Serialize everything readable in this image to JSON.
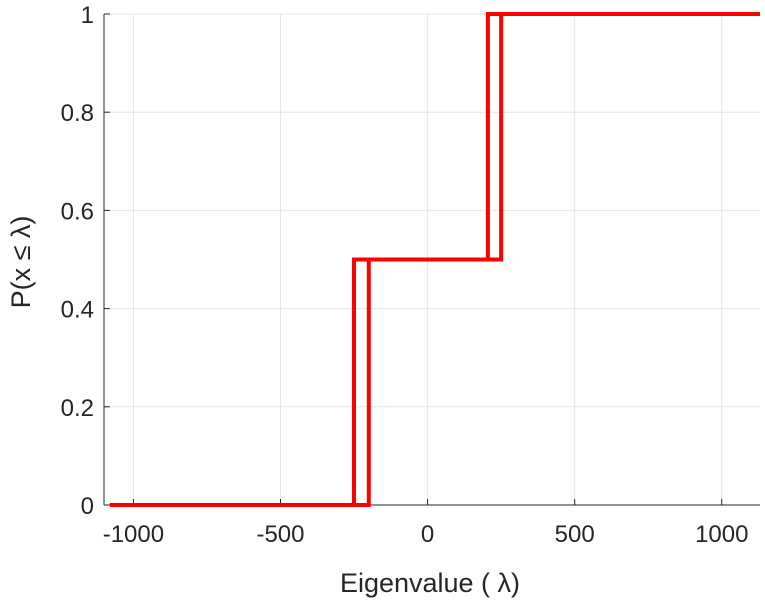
{
  "chart_data": {
    "type": "line",
    "title": "",
    "xlabel": "Eigenvalue (   λ)",
    "ylabel": "P(x ≤ λ)",
    "xlim": [
      -1100,
      1130
    ],
    "ylim": [
      0,
      1
    ],
    "xticks": [
      -1000,
      -500,
      0,
      500,
      1000
    ],
    "xtick_labels": [
      "-1000",
      "-500",
      "0",
      "500",
      "1000"
    ],
    "yticks": [
      0,
      0.2,
      0.4,
      0.6,
      0.8,
      1
    ],
    "ytick_labels": [
      "0",
      "0.2",
      "0.4",
      "0.6",
      "0.8",
      "1"
    ],
    "grid": true,
    "series": [
      {
        "color": "#ff0000",
        "step": true,
        "x": [
          -1080,
          -250,
          -250,
          250,
          250,
          1130
        ],
        "y": [
          0,
          0,
          0.5,
          0.5,
          1,
          1
        ]
      },
      {
        "color": "#ff0000",
        "step": true,
        "x": [
          -1080,
          -200,
          -200,
          205,
          205,
          1130
        ],
        "y": [
          0,
          0,
          0.5,
          0.5,
          1,
          1
        ]
      }
    ]
  }
}
